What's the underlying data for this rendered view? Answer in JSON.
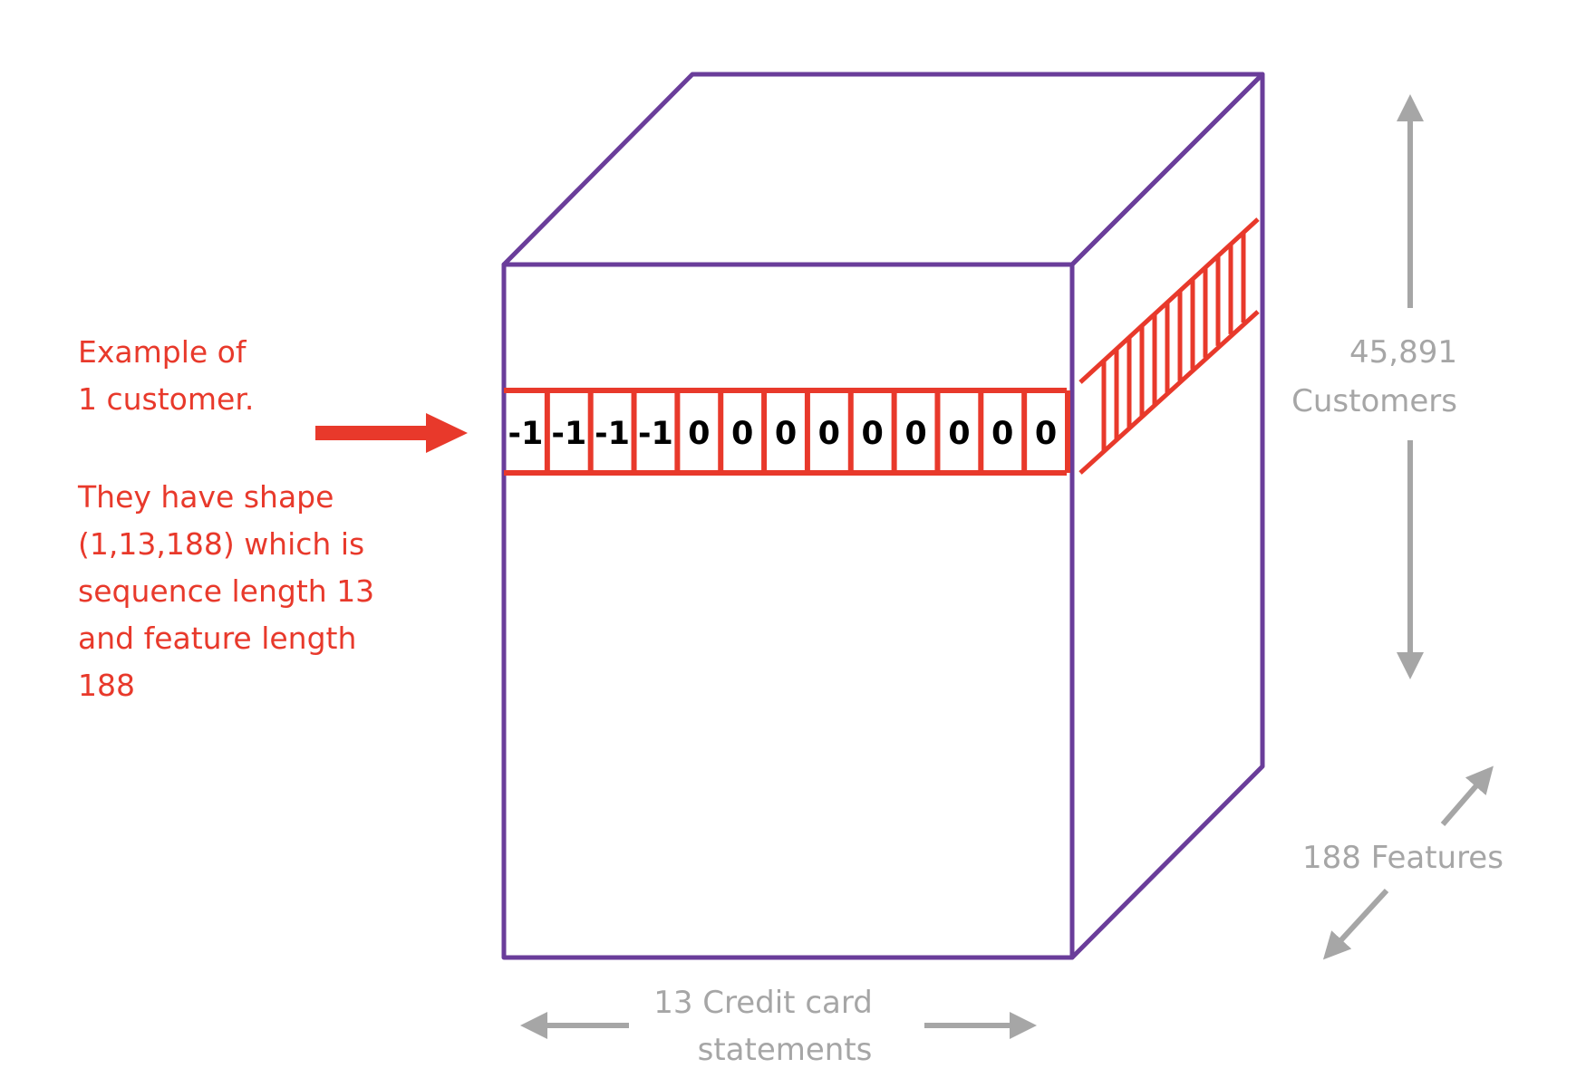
{
  "annotation": {
    "lines": [
      "Example of",
      "1 customer.",
      "",
      "They have shape",
      "(1,13,188) which is",
      "sequence length 13",
      "and feature length",
      "188"
    ]
  },
  "sequence_cells": [
    "-1",
    "-1",
    "-1",
    "-1",
    "0",
    "0",
    "0",
    "0",
    "0",
    "0",
    "0",
    "0",
    "0"
  ],
  "dimensions": {
    "customers": {
      "line1": "45,891",
      "line2": "Customers"
    },
    "features": {
      "label": "188 Features"
    },
    "statements": {
      "line1": "13 Credit card",
      "line2": "statements"
    }
  },
  "colors": {
    "cube_outline": "#6a3d9a",
    "highlight": "#e8392b",
    "dimension_text": "#a6a6a6"
  }
}
